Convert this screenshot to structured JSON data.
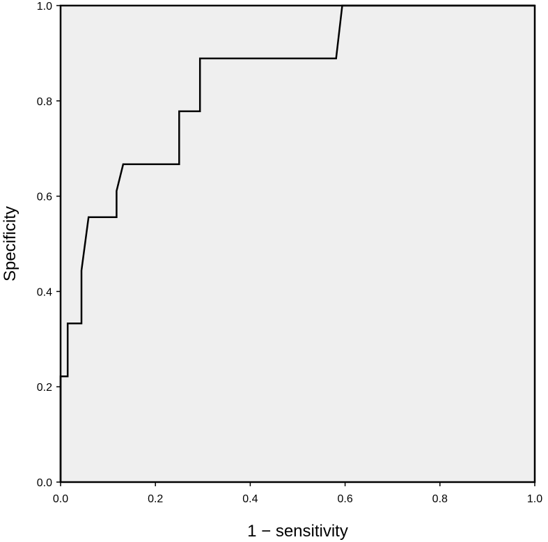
{
  "chart_data": {
    "type": "line",
    "title": "",
    "xlabel": "1 − sensitivity",
    "ylabel": "Specificity",
    "xlim": [
      0,
      1
    ],
    "ylim": [
      0,
      1
    ],
    "x_ticks": [
      "0.0",
      "0.2",
      "0.4",
      "0.6",
      "0.8",
      "1.0"
    ],
    "y_ticks": [
      "0.0",
      "0.2",
      "0.4",
      "0.6",
      "0.8",
      "1.0"
    ],
    "grid": false,
    "background_color": "#efefef",
    "line_color": "#000000",
    "series": [
      {
        "x": [
          0.0,
          0.0,
          0.015,
          0.015,
          0.044,
          0.044,
          0.059,
          0.118,
          0.118,
          0.132,
          0.25,
          0.25,
          0.294,
          0.294,
          0.581,
          0.594,
          1.0
        ],
        "y": [
          0.0,
          0.222,
          0.222,
          0.333,
          0.333,
          0.444,
          0.556,
          0.556,
          0.611,
          0.667,
          0.667,
          0.778,
          0.778,
          0.889,
          0.889,
          1.0,
          1.0
        ]
      }
    ]
  }
}
